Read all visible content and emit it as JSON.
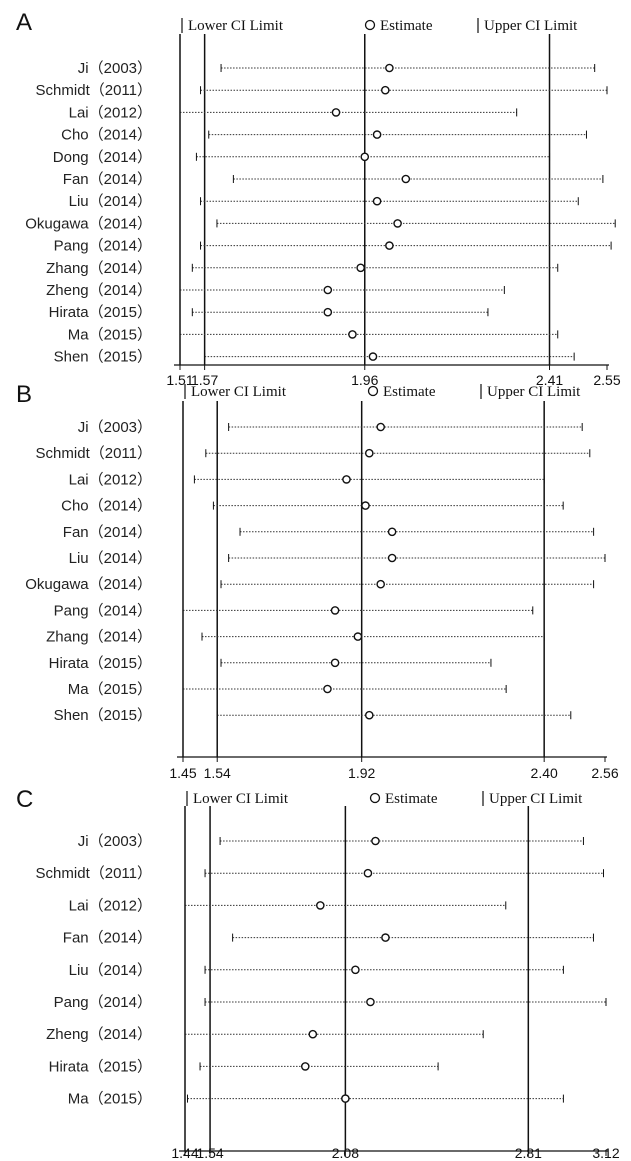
{
  "legend": {
    "lower": "Lower CI  Limit",
    "estimate": "Estimate",
    "upper": "Upper CI  Limit"
  },
  "chart_data": [
    {
      "panel": "A",
      "type": "scatter",
      "xlim": [
        1.51,
        2.55
      ],
      "ticks": [
        "1.51",
        "1.57",
        "1.96",
        "2.41",
        "2.55"
      ],
      "tick_values": [
        1.51,
        1.57,
        1.96,
        2.41,
        2.55
      ],
      "reference_lines": [
        1.51,
        1.57,
        1.96,
        2.41
      ],
      "rows": [
        {
          "label": "Ji（2003）",
          "lower": 1.61,
          "estimate": 2.02,
          "upper": 2.52
        },
        {
          "label": "Schmidt（2011）",
          "lower": 1.56,
          "estimate": 2.01,
          "upper": 2.55
        },
        {
          "label": "Lai（2012）",
          "lower": 1.51,
          "estimate": 1.89,
          "upper": 2.33
        },
        {
          "label": "Cho（2014）",
          "lower": 1.58,
          "estimate": 1.99,
          "upper": 2.5
        },
        {
          "label": "Dong（2014）",
          "lower": 1.55,
          "estimate": 1.96,
          "upper": 2.41
        },
        {
          "label": "Fan（2014）",
          "lower": 1.64,
          "estimate": 2.06,
          "upper": 2.54
        },
        {
          "label": "Liu（2014）",
          "lower": 1.56,
          "estimate": 1.99,
          "upper": 2.48
        },
        {
          "label": "Okugawa（2014）",
          "lower": 1.6,
          "estimate": 2.04,
          "upper": 2.57
        },
        {
          "label": "Pang（2014）",
          "lower": 1.56,
          "estimate": 2.02,
          "upper": 2.56
        },
        {
          "label": "Zhang（2014）",
          "lower": 1.54,
          "estimate": 1.95,
          "upper": 2.43
        },
        {
          "label": "Zheng（2014）",
          "lower": 1.51,
          "estimate": 1.87,
          "upper": 2.3
        },
        {
          "label": "Hirata（2015）",
          "lower": 1.54,
          "estimate": 1.87,
          "upper": 2.26
        },
        {
          "label": "Ma（2015）",
          "lower": 1.51,
          "estimate": 1.93,
          "upper": 2.43
        },
        {
          "label": "Shen（2015）",
          "lower": 1.57,
          "estimate": 1.98,
          "upper": 2.47
        }
      ]
    },
    {
      "panel": "B",
      "type": "scatter",
      "xlim": [
        1.45,
        2.56
      ],
      "ticks": [
        "1.45",
        "1.54",
        "1.92",
        "2.40",
        "2.56"
      ],
      "tick_values": [
        1.45,
        1.54,
        1.92,
        2.4,
        2.56
      ],
      "reference_lines": [
        1.45,
        1.54,
        1.92,
        2.4
      ],
      "rows": [
        {
          "label": "Ji（2003）",
          "lower": 1.57,
          "estimate": 1.97,
          "upper": 2.5
        },
        {
          "label": "Schmidt（2011）",
          "lower": 1.51,
          "estimate": 1.94,
          "upper": 2.52
        },
        {
          "label": "Lai（2012）",
          "lower": 1.48,
          "estimate": 1.88,
          "upper": 2.4
        },
        {
          "label": "Cho（2014）",
          "lower": 1.53,
          "estimate": 1.93,
          "upper": 2.45
        },
        {
          "label": "Fan（2014）",
          "lower": 1.6,
          "estimate": 2.0,
          "upper": 2.53
        },
        {
          "label": "Liu（2014）",
          "lower": 1.57,
          "estimate": 2.0,
          "upper": 2.56
        },
        {
          "label": "Okugawa（2014）",
          "lower": 1.55,
          "estimate": 1.97,
          "upper": 2.53
        },
        {
          "label": "Pang（2014）",
          "lower": 1.45,
          "estimate": 1.85,
          "upper": 2.37
        },
        {
          "label": "Zhang（2014）",
          "lower": 1.5,
          "estimate": 1.91,
          "upper": 2.4
        },
        {
          "label": "Hirata（2015）",
          "lower": 1.55,
          "estimate": 1.85,
          "upper": 2.26
        },
        {
          "label": "Ma（2015）",
          "lower": 1.45,
          "estimate": 1.83,
          "upper": 2.3
        },
        {
          "label": "Shen（2015）",
          "lower": 1.54,
          "estimate": 1.94,
          "upper": 2.47
        }
      ]
    },
    {
      "panel": "C",
      "type": "scatter",
      "xlim": [
        1.44,
        3.12
      ],
      "ticks": [
        "1.44",
        "1.54",
        "2.08",
        "2.81",
        "3.12"
      ],
      "tick_values": [
        1.44,
        1.54,
        2.08,
        2.81,
        3.12
      ],
      "reference_lines": [
        1.44,
        1.54,
        2.08,
        2.81
      ],
      "rows": [
        {
          "label": "Ji（2003）",
          "lower": 1.58,
          "estimate": 2.2,
          "upper": 3.03
        },
        {
          "label": "Schmidt（2011）",
          "lower": 1.52,
          "estimate": 2.17,
          "upper": 3.11
        },
        {
          "label": "Lai（2012）",
          "lower": 1.44,
          "estimate": 1.98,
          "upper": 2.72
        },
        {
          "label": "Fan（2014）",
          "lower": 1.63,
          "estimate": 2.24,
          "upper": 3.07
        },
        {
          "label": "Liu（2014）",
          "lower": 1.52,
          "estimate": 2.12,
          "upper": 2.95
        },
        {
          "label": "Pang（2014）",
          "lower": 1.52,
          "estimate": 2.18,
          "upper": 3.12
        },
        {
          "label": "Zheng（2014）",
          "lower": 1.44,
          "estimate": 1.95,
          "upper": 2.63
        },
        {
          "label": "Hirata（2015）",
          "lower": 1.5,
          "estimate": 1.92,
          "upper": 2.45
        },
        {
          "label": "Ma（2015）",
          "lower": 1.45,
          "estimate": 2.08,
          "upper": 2.95
        }
      ]
    }
  ]
}
